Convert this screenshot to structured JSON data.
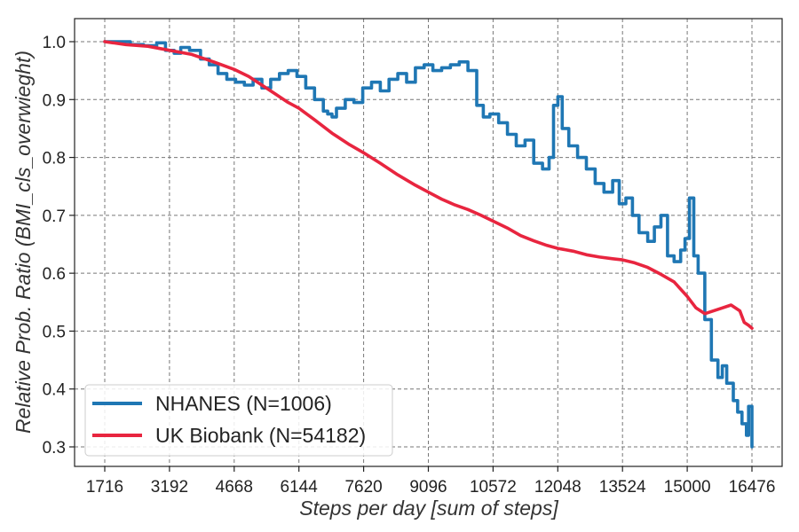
{
  "chart_data": {
    "type": "line",
    "title": "",
    "xlabel": "Steps per day [sum of steps]",
    "ylabel": "Relative Prob. Ratio (BMI_cls_overwieght)",
    "xlim": [
      1716,
      16476
    ],
    "ylim": [
      0.3,
      1.0
    ],
    "x_ticks": [
      1716,
      3192,
      4668,
      6144,
      7620,
      9096,
      10572,
      12048,
      13524,
      15000,
      16476
    ],
    "y_ticks": [
      0.3,
      0.4,
      0.5,
      0.6,
      0.7,
      0.8,
      0.9,
      1.0
    ],
    "x_tick_labels": [
      "1716",
      "3192",
      "4668",
      "6144",
      "7620",
      "9096",
      "10572",
      "12048",
      "13524",
      "15000",
      "16476"
    ],
    "y_tick_labels": [
      "0.3",
      "0.4",
      "0.5",
      "0.6",
      "0.7",
      "0.8",
      "0.9",
      "1.0"
    ],
    "grid": true,
    "legend_position": "bottom-left",
    "series": [
      {
        "name": "NHANES (N=1006)",
        "color": "#1f77b4",
        "x": [
          1716,
          2000,
          2300,
          2600,
          2900,
          3100,
          3300,
          3450,
          3650,
          3900,
          4100,
          4300,
          4500,
          4700,
          4900,
          5100,
          5300,
          5500,
          5700,
          5900,
          6100,
          6300,
          6500,
          6700,
          6800,
          6900,
          7000,
          7200,
          7400,
          7600,
          7800,
          8000,
          8200,
          8400,
          8600,
          8800,
          9000,
          9200,
          9400,
          9600,
          9800,
          10000,
          10200,
          10350,
          10500,
          10700,
          10900,
          11100,
          11300,
          11500,
          11700,
          11850,
          11950,
          12050,
          12150,
          12300,
          12500,
          12700,
          12900,
          13100,
          13300,
          13450,
          13600,
          13750,
          13900,
          14100,
          14250,
          14400,
          14550,
          14700,
          14850,
          14950,
          15050,
          15150,
          15250,
          15400,
          15550,
          15700,
          15800,
          15900,
          16050,
          16150,
          16250,
          16350,
          16400,
          16476
        ],
        "values": [
          1.0,
          1.0,
          0.995,
          0.993,
          0.998,
          0.985,
          0.98,
          0.99,
          0.985,
          0.97,
          0.96,
          0.945,
          0.935,
          0.93,
          0.925,
          0.935,
          0.92,
          0.935,
          0.945,
          0.95,
          0.94,
          0.92,
          0.9,
          0.88,
          0.875,
          0.87,
          0.885,
          0.9,
          0.895,
          0.92,
          0.93,
          0.915,
          0.935,
          0.945,
          0.93,
          0.955,
          0.96,
          0.95,
          0.955,
          0.96,
          0.965,
          0.95,
          0.89,
          0.87,
          0.875,
          0.86,
          0.84,
          0.82,
          0.83,
          0.79,
          0.78,
          0.8,
          0.89,
          0.905,
          0.85,
          0.82,
          0.8,
          0.78,
          0.755,
          0.74,
          0.76,
          0.72,
          0.73,
          0.7,
          0.67,
          0.655,
          0.68,
          0.7,
          0.63,
          0.62,
          0.64,
          0.66,
          0.73,
          0.63,
          0.6,
          0.52,
          0.45,
          0.42,
          0.44,
          0.41,
          0.38,
          0.36,
          0.34,
          0.32,
          0.37,
          0.3
        ]
      },
      {
        "name": "UK Biobank (N=54182)",
        "color": "#e8253f",
        "x": [
          1716,
          2200,
          2700,
          3200,
          3700,
          4200,
          4668,
          5000,
          5300,
          5600,
          5900,
          6144,
          6500,
          6900,
          7300,
          7620,
          8000,
          8400,
          8800,
          9096,
          9400,
          9700,
          10000,
          10300,
          10572,
          10900,
          11200,
          11500,
          11800,
          12048,
          12400,
          12700,
          13000,
          13300,
          13524,
          13800,
          14100,
          14400,
          14700,
          15000,
          15200,
          15400,
          15600,
          15800,
          16000,
          16200,
          16300,
          16400,
          16476
        ],
        "values": [
          1.0,
          0.995,
          0.992,
          0.985,
          0.978,
          0.965,
          0.952,
          0.94,
          0.925,
          0.91,
          0.895,
          0.885,
          0.865,
          0.842,
          0.822,
          0.808,
          0.79,
          0.77,
          0.752,
          0.74,
          0.728,
          0.718,
          0.71,
          0.7,
          0.69,
          0.678,
          0.665,
          0.656,
          0.648,
          0.643,
          0.638,
          0.632,
          0.628,
          0.625,
          0.623,
          0.618,
          0.61,
          0.598,
          0.585,
          0.56,
          0.54,
          0.53,
          0.535,
          0.54,
          0.545,
          0.535,
          0.515,
          0.51,
          0.505
        ]
      }
    ]
  }
}
